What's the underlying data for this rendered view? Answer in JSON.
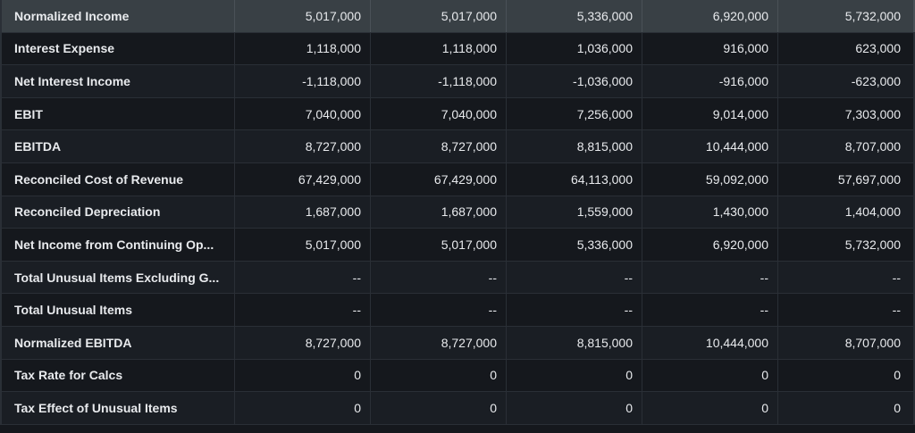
{
  "rows": [
    {
      "label": "Normalized Income",
      "values": [
        "5,017,000",
        "5,017,000",
        "5,336,000",
        "6,920,000",
        "5,732,000"
      ],
      "highlighted": true
    },
    {
      "label": "Interest Expense",
      "values": [
        "1,118,000",
        "1,118,000",
        "1,036,000",
        "916,000",
        "623,000"
      ]
    },
    {
      "label": "Net Interest Income",
      "values": [
        "-1,118,000",
        "-1,118,000",
        "-1,036,000",
        "-916,000",
        "-623,000"
      ]
    },
    {
      "label": "EBIT",
      "values": [
        "7,040,000",
        "7,040,000",
        "7,256,000",
        "9,014,000",
        "7,303,000"
      ]
    },
    {
      "label": "EBITDA",
      "values": [
        "8,727,000",
        "8,727,000",
        "8,815,000",
        "10,444,000",
        "8,707,000"
      ]
    },
    {
      "label": "Reconciled Cost of Revenue",
      "values": [
        "67,429,000",
        "67,429,000",
        "64,113,000",
        "59,092,000",
        "57,697,000"
      ]
    },
    {
      "label": "Reconciled Depreciation",
      "values": [
        "1,687,000",
        "1,687,000",
        "1,559,000",
        "1,430,000",
        "1,404,000"
      ]
    },
    {
      "label": "Net Income from Continuing Op...",
      "values": [
        "5,017,000",
        "5,017,000",
        "5,336,000",
        "6,920,000",
        "5,732,000"
      ]
    },
    {
      "label": "Total Unusual Items Excluding G...",
      "values": [
        "--",
        "--",
        "--",
        "--",
        "--"
      ]
    },
    {
      "label": "Total Unusual Items",
      "values": [
        "--",
        "--",
        "--",
        "--",
        "--"
      ]
    },
    {
      "label": "Normalized EBITDA",
      "values": [
        "8,727,000",
        "8,727,000",
        "8,815,000",
        "10,444,000",
        "8,707,000"
      ]
    },
    {
      "label": "Tax Rate for Calcs",
      "values": [
        "0",
        "0",
        "0",
        "0",
        "0"
      ]
    },
    {
      "label": "Tax Effect of Unusual Items",
      "values": [
        "0",
        "0",
        "0",
        "0",
        "0"
      ]
    }
  ]
}
